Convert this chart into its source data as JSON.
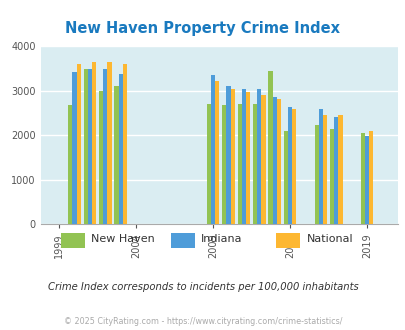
{
  "title": "New Haven Property Crime Index",
  "subtitle": "Crime Index corresponds to incidents per 100,000 inhabitants",
  "copyright": "© 2025 CityRating.com - https://www.cityrating.com/crime-statistics/",
  "groups": [
    {
      "year": 2000,
      "new_haven": 2680,
      "indiana": 3410,
      "national": 3610
    },
    {
      "year": 2001,
      "new_haven": 3490,
      "indiana": 3490,
      "national": 3650
    },
    {
      "year": 2002,
      "new_haven": 3000,
      "indiana": 3490,
      "national": 3650
    },
    {
      "year": 2003,
      "new_haven": 3100,
      "indiana": 3370,
      "national": 3590
    },
    {
      "year": 2009,
      "new_haven": 2700,
      "indiana": 3360,
      "national": 3220
    },
    {
      "year": 2010,
      "new_haven": 2680,
      "indiana": 3110,
      "national": 3040
    },
    {
      "year": 2011,
      "new_haven": 2700,
      "indiana": 3040,
      "national": 2980
    },
    {
      "year": 2012,
      "new_haven": 2700,
      "indiana": 3050,
      "national": 2910
    },
    {
      "year": 2013,
      "new_haven": 3450,
      "indiana": 2870,
      "national": 2820
    },
    {
      "year": 2014,
      "new_haven": 2090,
      "indiana": 2640,
      "national": 2600
    },
    {
      "year": 2016,
      "new_haven": 2220,
      "indiana": 2600,
      "national": 2460
    },
    {
      "year": 2017,
      "new_haven": 2150,
      "indiana": 2410,
      "national": 2450
    },
    {
      "year": 2019,
      "new_haven": 2050,
      "indiana": 1990,
      "national": 2090
    }
  ],
  "x_tick_labels": [
    "1999",
    "2004",
    "2009",
    "2014",
    "2019"
  ],
  "x_tick_positions": [
    1999,
    2004,
    2009,
    2014,
    2019
  ],
  "bar_colors": {
    "new_haven": "#92c353",
    "indiana": "#4e9cd9",
    "national": "#fdb731"
  },
  "bg_color": "#daedf2",
  "ylim": [
    0,
    4000
  ],
  "yticks": [
    0,
    1000,
    2000,
    3000,
    4000
  ],
  "bar_width": 0.27,
  "title_color": "#1a7abf",
  "subtitle_color": "#333333",
  "copyright_color": "#aaaaaa",
  "xlim": [
    1997.8,
    2021.0
  ]
}
